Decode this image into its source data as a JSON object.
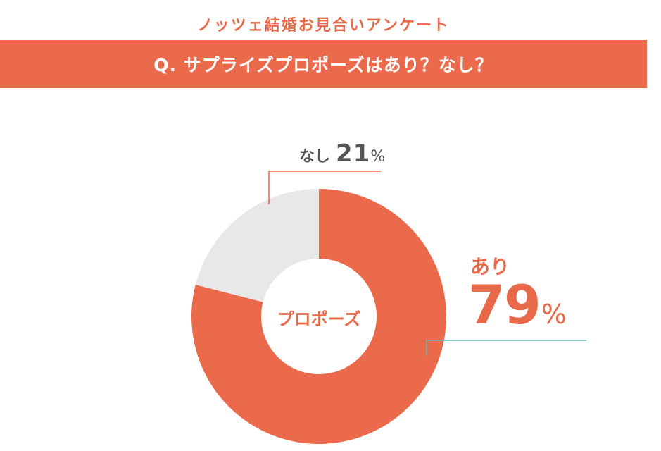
{
  "header": {
    "survey_title": "ノッツェ結婚お見合いアンケート",
    "question": "Q. サプライズプロポーズはあり？なし？"
  },
  "colors": {
    "accent": "#eb6a4c",
    "nashi_slice": "#e8e8e8",
    "ari_leader": "#5bb7b3",
    "nashi_leader": "#e8694a"
  },
  "chart_data": {
    "type": "pie",
    "variant": "donut",
    "center_label": "プロポーズ",
    "slices": [
      {
        "name": "あり",
        "value": 79,
        "unit": "%",
        "color": "#eb6a4c"
      },
      {
        "name": "なし",
        "value": 21,
        "unit": "%",
        "color": "#e8e8e8"
      }
    ],
    "start": "12 o'clock",
    "direction": "clockwise"
  }
}
